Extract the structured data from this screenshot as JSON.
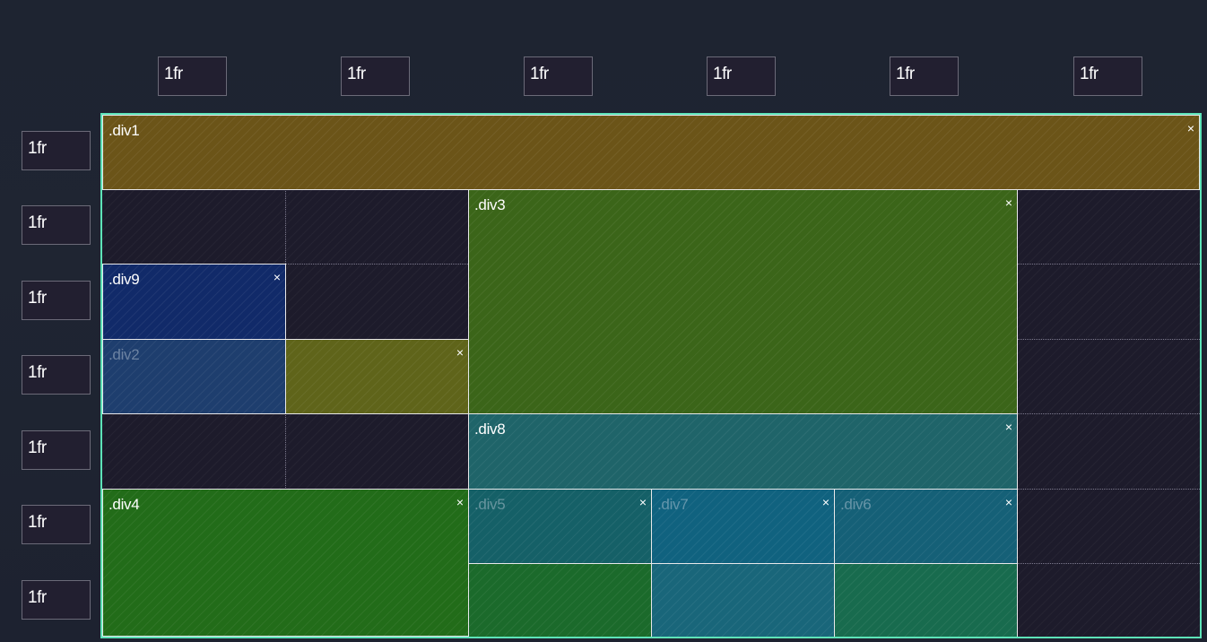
{
  "columns": [
    {
      "value": "1fr"
    },
    {
      "value": "1fr"
    },
    {
      "value": "1fr"
    },
    {
      "value": "1fr"
    },
    {
      "value": "1fr"
    },
    {
      "value": "1fr"
    }
  ],
  "rows": [
    {
      "value": "1fr"
    },
    {
      "value": "1fr"
    },
    {
      "value": "1fr"
    },
    {
      "value": "1fr"
    },
    {
      "value": "1fr"
    },
    {
      "value": "1fr"
    },
    {
      "value": "1fr"
    }
  ],
  "close_glyph": "×",
  "areas": [
    {
      "id": "div1",
      "label": ".div1",
      "dim": false,
      "color": "#6b5418",
      "close": true
    },
    {
      "id": "div3",
      "label": ".div3",
      "dim": false,
      "color": "#3b6519",
      "close": true
    },
    {
      "id": "div9",
      "label": ".div9",
      "dim": false,
      "color": "#112a69",
      "close": true
    },
    {
      "id": "div2",
      "label": ".div2",
      "dim": true,
      "color": "#1e3e6e",
      "close": false
    },
    {
      "id": "divx",
      "label": "",
      "dim": false,
      "color": "#5f641a",
      "close": true
    },
    {
      "id": "div8",
      "label": ".div8",
      "dim": false,
      "color": "#1f6469",
      "close": true
    },
    {
      "id": "div4",
      "label": ".div4",
      "dim": false,
      "color": "#226c19",
      "close": true
    },
    {
      "id": "div5",
      "label": ".div5",
      "dim": true,
      "color": "#156067",
      "close": true
    },
    {
      "id": "div7",
      "label": ".div7",
      "dim": true,
      "color": "#10627f",
      "close": true
    },
    {
      "id": "div6",
      "label": ".div6",
      "dim": true,
      "color": "#156077",
      "close": true
    },
    {
      "id": "cellA",
      "label": "",
      "dim": false,
      "color": "#1b6a2b",
      "close": false
    },
    {
      "id": "cellB",
      "label": "",
      "dim": false,
      "color": "#19667a",
      "close": false
    },
    {
      "id": "cellC",
      "label": "",
      "dim": false,
      "color": "#186b4e",
      "close": false
    }
  ]
}
